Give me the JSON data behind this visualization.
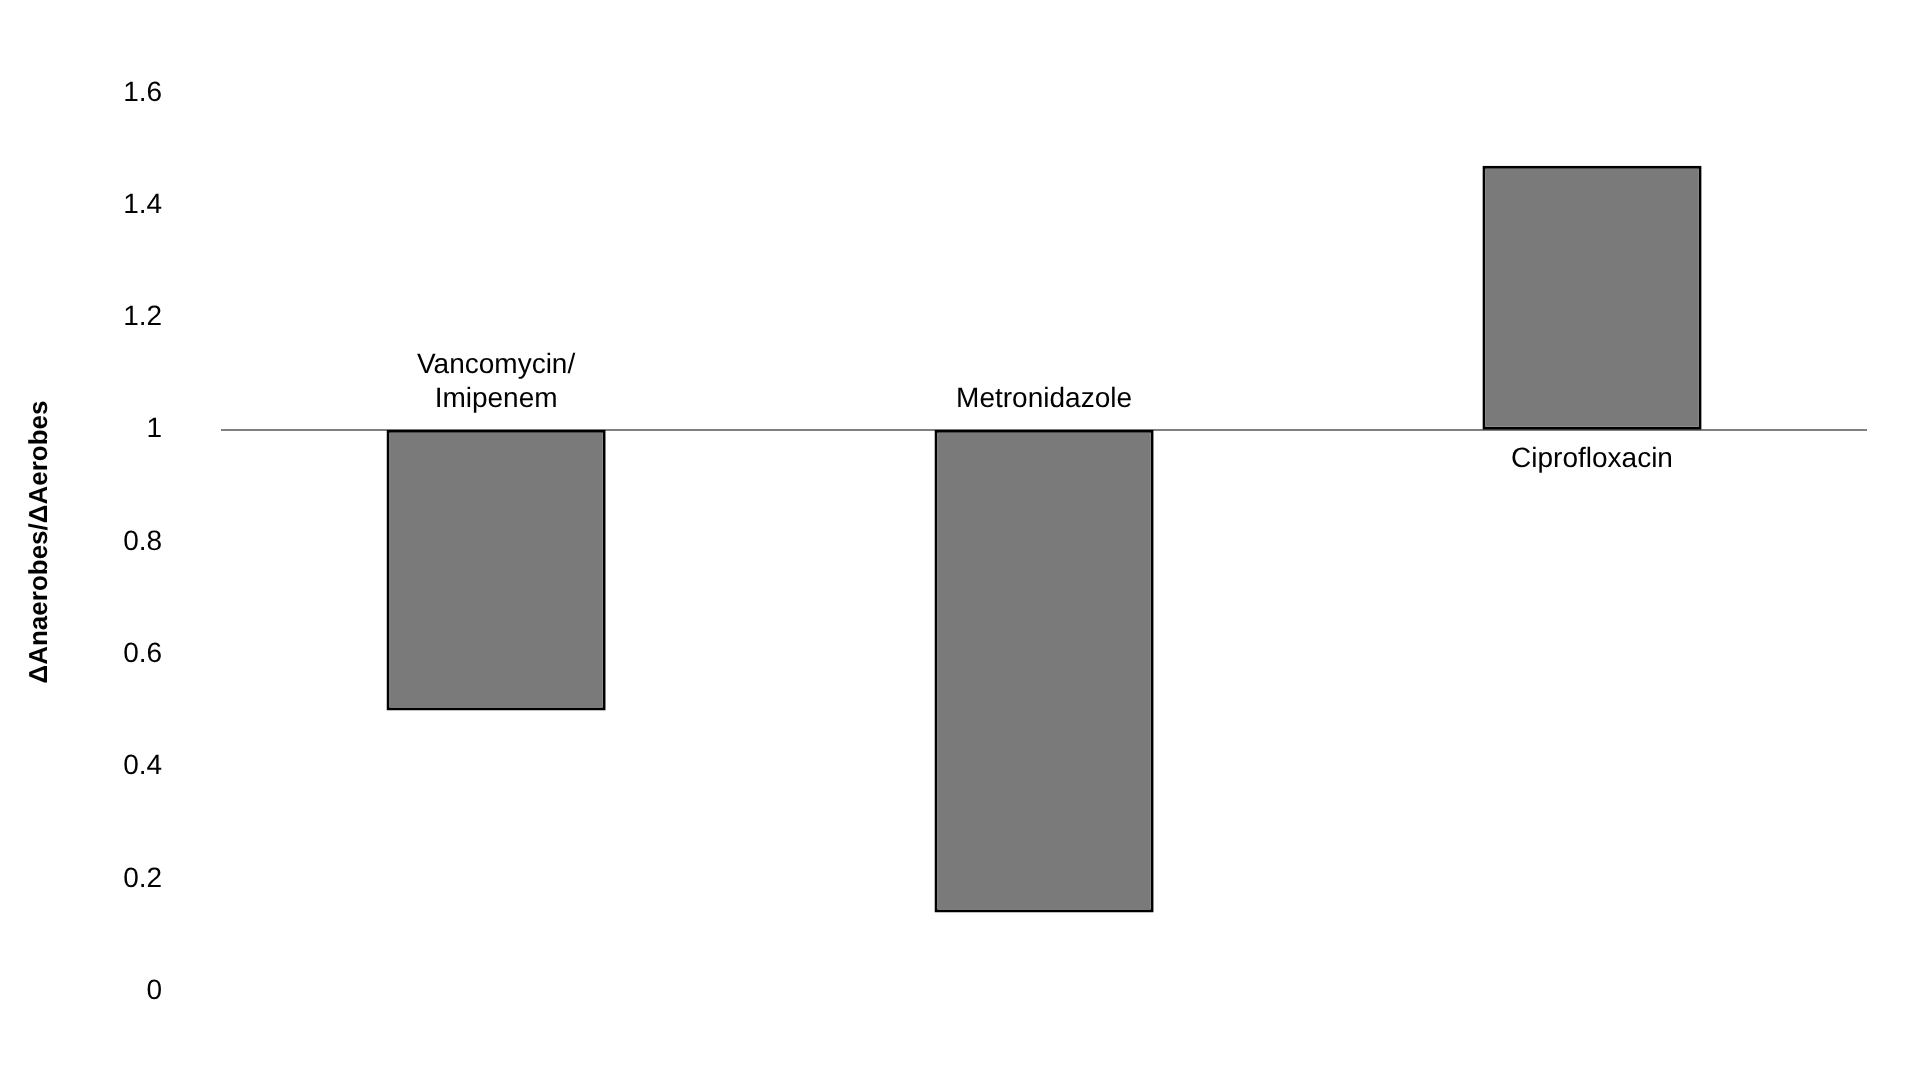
{
  "chart_data": {
    "type": "bar",
    "ylabel": "ΔAnaerobes/ΔAerobes",
    "categories": [
      "Vancomycin/Imipenem",
      "Metronidazole",
      "Ciprofloxacin"
    ],
    "base": [
      1,
      1,
      1
    ],
    "values": [
      -0.5,
      -0.86,
      0.47
    ],
    "color": "#7a7a7a",
    "ylim": [
      0,
      1.6
    ],
    "yticks": [
      0,
      0.2,
      0.4,
      0.6,
      0.8,
      1,
      1.2,
      1.4,
      1.6
    ],
    "grid": false,
    "legend": false
  }
}
